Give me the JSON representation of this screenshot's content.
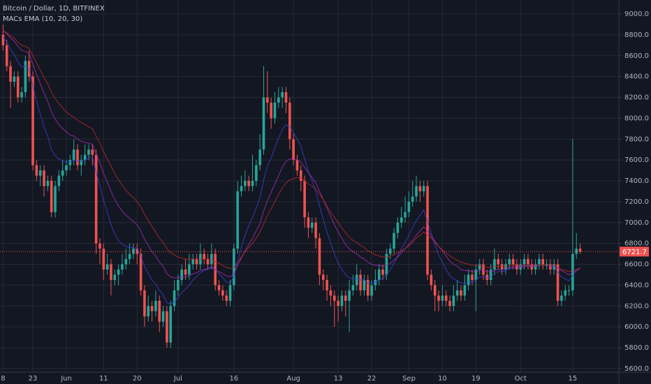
{
  "chart_data": {
    "type": "candlestick",
    "title": "Bitcoin / Dollar, 1D, BITFINEX",
    "indicator": {
      "title": "MACs EMA (10, 20, 30)",
      "lines": [
        {
          "color": "#3a3fd1",
          "values": [
            8780,
            8730,
            8660,
            8610,
            8540,
            8490,
            8500,
            8480,
            8310,
            8160,
            8040,
            7920,
            7830,
            7700,
            7640,
            7610,
            7590,
            7580,
            7580,
            7600,
            7590,
            7590,
            7600,
            7620,
            7630,
            7480,
            7350,
            7210,
            7100,
            6980,
            6890,
            6830,
            6790,
            6770,
            6760,
            6760,
            6750,
            6680,
            6580,
            6510,
            6450,
            6410,
            6350,
            6310,
            6230,
            6220,
            6240,
            6280,
            6330,
            6360,
            6400,
            6450,
            6480,
            6520,
            6540,
            6550,
            6580,
            6550,
            6510,
            6470,
            6430,
            6420,
            6480,
            6630,
            6760,
            6880,
            6970,
            7050,
            7140,
            7240,
            7410,
            7540,
            7620,
            7720,
            7810,
            7890,
            7940,
            7920,
            7860,
            7800,
            7730,
            7610,
            7490,
            7400,
            7300,
            7160,
            7030,
            6910,
            6800,
            6700,
            6610,
            6550,
            6500,
            6470,
            6460,
            6470,
            6450,
            6450,
            6420,
            6420,
            6430,
            6450,
            6460,
            6500,
            6550,
            6610,
            6680,
            6750,
            6810,
            6880,
            6950,
            7020,
            7070,
            7120,
            7010,
            6900,
            6790,
            6690,
            6620,
            6550,
            6490,
            6460,
            6440,
            6420,
            6420,
            6430,
            6430,
            6450,
            6480,
            6480,
            6470,
            6480,
            6510,
            6530,
            6530,
            6540,
            6560,
            6570,
            6570,
            6580,
            6590,
            6590,
            6580,
            6580,
            6590,
            6590,
            6590,
            6580,
            6580,
            6520,
            6480,
            6460,
            6440,
            6490,
            6540,
            6570
          ]
        },
        {
          "color": "#a02db5",
          "values": [
            8840,
            8810,
            8770,
            8740,
            8690,
            8650,
            8640,
            8620,
            8520,
            8420,
            8330,
            8240,
            8160,
            8060,
            7990,
            7940,
            7900,
            7870,
            7840,
            7830,
            7800,
            7780,
            7770,
            7760,
            7750,
            7660,
            7570,
            7470,
            7390,
            7300,
            7220,
            7160,
            7110,
            7070,
            7040,
            7010,
            6980,
            6920,
            6840,
            6780,
            6720,
            6680,
            6620,
            6580,
            6510,
            6480,
            6470,
            6470,
            6480,
            6480,
            6490,
            6510,
            6520,
            6540,
            6550,
            6560,
            6570,
            6550,
            6530,
            6510,
            6490,
            6480,
            6510,
            6590,
            6660,
            6730,
            6790,
            6850,
            6920,
            6990,
            7110,
            7210,
            7290,
            7370,
            7450,
            7530,
            7590,
            7610,
            7610,
            7600,
            7580,
            7530,
            7480,
            7430,
            7380,
            7300,
            7220,
            7140,
            7060,
            6980,
            6910,
            6850,
            6790,
            6750,
            6720,
            6700,
            6670,
            6650,
            6620,
            6600,
            6590,
            6590,
            6580,
            6590,
            6610,
            6640,
            6670,
            6710,
            6750,
            6790,
            6830,
            6880,
            6920,
            6960,
            6920,
            6870,
            6820,
            6770,
            6730,
            6680,
            6630,
            6600,
            6580,
            6550,
            6540,
            6540,
            6530,
            6530,
            6540,
            6540,
            6530,
            6530,
            6540,
            6550,
            6550,
            6560,
            6570,
            6570,
            6570,
            6570,
            6580,
            6580,
            6580,
            6580,
            6590,
            6590,
            6590,
            6590,
            6590,
            6560,
            6540,
            6520,
            6500,
            6520,
            6540,
            6560
          ]
        },
        {
          "color": "#b8282c",
          "values": [
            8840,
            8820,
            8790,
            8770,
            8730,
            8700,
            8690,
            8670,
            8600,
            8530,
            8460,
            8390,
            8330,
            8250,
            8190,
            8140,
            8100,
            8060,
            8030,
            8010,
            7980,
            7960,
            7940,
            7920,
            7900,
            7830,
            7760,
            7680,
            7610,
            7540,
            7470,
            7410,
            7360,
            7310,
            7270,
            7240,
            7200,
            7150,
            7080,
            7020,
            6960,
            6910,
            6850,
            6810,
            6750,
            6710,
            6690,
            6670,
            6660,
            6650,
            6650,
            6650,
            6650,
            6650,
            6650,
            6650,
            6650,
            6630,
            6610,
            6590,
            6570,
            6560,
            6570,
            6620,
            6670,
            6720,
            6760,
            6800,
            6850,
            6910,
            6990,
            7070,
            7130,
            7200,
            7270,
            7330,
            7380,
            7410,
            7420,
            7430,
            7430,
            7400,
            7370,
            7350,
            7320,
            7270,
            7220,
            7160,
            7100,
            7050,
            7000,
            6950,
            6900,
            6860,
            6830,
            6810,
            6780,
            6760,
            6730,
            6710,
            6690,
            6680,
            6670,
            6670,
            6680,
            6690,
            6710,
            6730,
            6750,
            6780,
            6810,
            6850,
            6880,
            6910,
            6880,
            6850,
            6810,
            6770,
            6740,
            6710,
            6680,
            6660,
            6640,
            6620,
            6610,
            6600,
            6590,
            6590,
            6590,
            6580,
            6570,
            6570,
            6580,
            6580,
            6580,
            6580,
            6590,
            6590,
            6590,
            6590,
            6590,
            6590,
            6590,
            6590,
            6590,
            6590,
            6590,
            6590,
            6590,
            6570,
            6550,
            6540,
            6530,
            6540,
            6550,
            6560
          ]
        }
      ]
    },
    "categories": [
      "8",
      null,
      null,
      null,
      null,
      null,
      null,
      null,
      "23",
      null,
      null,
      null,
      null,
      null,
      null,
      null,
      null,
      "Jun",
      null,
      null,
      null,
      null,
      null,
      null,
      null,
      null,
      null,
      "11",
      null,
      null,
      null,
      null,
      null,
      null,
      null,
      null,
      "20",
      null,
      null,
      null,
      null,
      null,
      null,
      null,
      null,
      null,
      null,
      "Jul",
      null,
      null,
      null,
      null,
      null,
      null,
      null,
      null,
      null,
      null,
      null,
      null,
      null,
      null,
      "16",
      null,
      null,
      null,
      null,
      null,
      null,
      null,
      null,
      null,
      null,
      null,
      null,
      null,
      null,
      null,
      "Aug",
      null,
      null,
      null,
      null,
      null,
      null,
      null,
      null,
      null,
      null,
      null,
      "13",
      null,
      null,
      null,
      null,
      null,
      null,
      null,
      null,
      "22",
      null,
      null,
      null,
      null,
      null,
      null,
      null,
      null,
      null,
      "Sep",
      null,
      null,
      null,
      null,
      null,
      null,
      null,
      null,
      "10",
      null,
      null,
      null,
      null,
      null,
      null,
      null,
      null,
      "19",
      null,
      null,
      null,
      null,
      null,
      null,
      null,
      null,
      null,
      null,
      null,
      "Oct",
      null,
      null,
      null,
      null,
      null,
      null,
      null,
      null,
      null,
      null,
      null,
      null,
      null,
      "15",
      null,
      null
    ],
    "open": [
      8800,
      8700,
      8500,
      8350,
      8400,
      8200,
      8250,
      8550,
      8400,
      7550,
      7450,
      7500,
      7350,
      7400,
      7100,
      7350,
      7450,
      7500,
      7550,
      7600,
      7700,
      7550,
      7600,
      7650,
      7700,
      7650,
      6800,
      6750,
      6550,
      6600,
      6450,
      6500,
      6550,
      6600,
      6650,
      6700,
      6750,
      6700,
      6350,
      6100,
      6200,
      6150,
      6250,
      6050,
      6150,
      5850,
      6200,
      6350,
      6450,
      6550,
      6500,
      6600,
      6650,
      6600,
      6700,
      6650,
      6600,
      6700,
      6400,
      6350,
      6300,
      6250,
      6400,
      6750,
      7300,
      7350,
      7400,
      7350,
      7400,
      7550,
      7700,
      8200,
      8150,
      8000,
      8150,
      8200,
      8250,
      8150,
      7800,
      7600,
      7500,
      7400,
      7050,
      6950,
      7000,
      6850,
      6500,
      6450,
      6350,
      6300,
      6250,
      6200,
      6300,
      6250,
      6350,
      6400,
      6500,
      6350,
      6450,
      6300,
      6400,
      6450,
      6550,
      6500,
      6700,
      6750,
      6900,
      7000,
      7050,
      7100,
      7200,
      7250,
      7350,
      7300,
      7350,
      6500,
      6400,
      6300,
      6250,
      6300,
      6250,
      6200,
      6300,
      6350,
      6300,
      6400,
      6500,
      6450,
      6550,
      6600,
      6500,
      6450,
      6550,
      6650,
      6600,
      6550,
      6600,
      6650,
      6600,
      6550,
      6600,
      6650,
      6600,
      6550,
      6600,
      6650,
      6600,
      6600,
      6550,
      6600,
      6250,
      6300,
      6350,
      6350,
      6700,
      6750
    ],
    "high": [
      8900,
      8750,
      8550,
      8450,
      8450,
      8300,
      8600,
      8650,
      8450,
      7600,
      7550,
      7550,
      7450,
      7450,
      7400,
      7500,
      7600,
      7600,
      7650,
      7800,
      7750,
      7650,
      7750,
      7750,
      7750,
      7700,
      6850,
      6800,
      6700,
      6650,
      6550,
      6600,
      6700,
      6750,
      6800,
      6800,
      6800,
      6750,
      6400,
      6300,
      6250,
      6350,
      6300,
      6200,
      6200,
      6250,
      6450,
      6500,
      6600,
      6650,
      6700,
      6700,
      6700,
      6800,
      6750,
      6700,
      6800,
      6750,
      6450,
      6400,
      6350,
      6450,
      6800,
      7400,
      7450,
      7500,
      7450,
      7650,
      7600,
      7850,
      8500,
      8450,
      8200,
      8250,
      8300,
      8300,
      8300,
      8200,
      7850,
      7650,
      7550,
      7450,
      7100,
      7050,
      7050,
      6900,
      6550,
      6500,
      6400,
      6350,
      6300,
      6350,
      6350,
      6450,
      6500,
      6600,
      6550,
      6500,
      6500,
      6450,
      6550,
      6600,
      6600,
      6750,
      6800,
      6950,
      7050,
      7150,
      7250,
      7300,
      7400,
      7450,
      7400,
      7400,
      7400,
      6550,
      6450,
      6350,
      6400,
      6350,
      6300,
      6400,
      6450,
      6400,
      6500,
      6550,
      6550,
      6600,
      6650,
      6650,
      6550,
      6600,
      6750,
      6700,
      6650,
      6650,
      6700,
      6700,
      6650,
      6650,
      6700,
      6700,
      6650,
      6650,
      6700,
      6700,
      6650,
      6650,
      6650,
      6650,
      6350,
      6400,
      6400,
      7800,
      6900,
      6800
    ],
    "low": [
      8650,
      8450,
      8100,
      8300,
      8150,
      8150,
      8200,
      8350,
      7500,
      7400,
      7350,
      7250,
      7300,
      7050,
      7050,
      7300,
      7400,
      7450,
      7500,
      7550,
      7500,
      7450,
      7550,
      7600,
      7550,
      6700,
      6600,
      6450,
      6500,
      6300,
      6400,
      6400,
      6500,
      6550,
      6600,
      6650,
      6600,
      6300,
      6000,
      6050,
      6050,
      6100,
      5950,
      6000,
      5800,
      5800,
      6150,
      6300,
      6400,
      6450,
      6450,
      6550,
      6550,
      6550,
      6600,
      6550,
      6550,
      6350,
      6300,
      6250,
      6200,
      6200,
      6350,
      6700,
      7250,
      7300,
      7300,
      7300,
      7350,
      7500,
      7650,
      8050,
      7900,
      7950,
      8100,
      8100,
      8050,
      7700,
      7550,
      7450,
      7300,
      6950,
      6850,
      6900,
      6750,
      6400,
      6350,
      6250,
      6200,
      6000,
      6050,
      6150,
      6100,
      5950,
      6300,
      6350,
      6300,
      6300,
      6250,
      6250,
      6350,
      6400,
      6450,
      6450,
      6650,
      6700,
      6850,
      6950,
      7000,
      7050,
      7150,
      7200,
      7200,
      7250,
      6450,
      6350,
      6150,
      6150,
      6200,
      6200,
      6150,
      6150,
      6250,
      6250,
      6250,
      6350,
      6400,
      6150,
      6500,
      6450,
      6400,
      6400,
      6500,
      6550,
      6500,
      6500,
      6550,
      6550,
      6500,
      6500,
      6550,
      6550,
      6500,
      6500,
      6550,
      6550,
      6550,
      6500,
      6500,
      6200,
      6200,
      6250,
      6300,
      6300,
      6650,
      6700
    ],
    "close": [
      8700,
      8500,
      8350,
      8400,
      8200,
      8250,
      8550,
      8400,
      7550,
      7450,
      7500,
      7350,
      7400,
      7100,
      7350,
      7450,
      7500,
      7550,
      7600,
      7700,
      7550,
      7600,
      7650,
      7700,
      7650,
      6800,
      6750,
      6550,
      6600,
      6450,
      6500,
      6550,
      6600,
      6650,
      6700,
      6750,
      6700,
      6350,
      6100,
      6200,
      6150,
      6250,
      6050,
      6150,
      5850,
      6200,
      6350,
      6450,
      6550,
      6500,
      6600,
      6650,
      6600,
      6700,
      6650,
      6600,
      6700,
      6400,
      6350,
      6300,
      6250,
      6400,
      6750,
      7300,
      7350,
      7400,
      7350,
      7400,
      7550,
      7700,
      8200,
      8150,
      8000,
      8150,
      8200,
      8250,
      8150,
      7800,
      7600,
      7500,
      7400,
      7050,
      6950,
      7000,
      6850,
      6500,
      6450,
      6350,
      6300,
      6250,
      6200,
      6300,
      6250,
      6350,
      6400,
      6500,
      6350,
      6450,
      6300,
      6400,
      6450,
      6550,
      6500,
      6700,
      6750,
      6900,
      7000,
      7050,
      7100,
      7200,
      7250,
      7350,
      7300,
      7350,
      6500,
      6400,
      6300,
      6250,
      6300,
      6250,
      6200,
      6300,
      6350,
      6300,
      6400,
      6500,
      6450,
      6550,
      6600,
      6500,
      6450,
      6550,
      6650,
      6600,
      6550,
      6600,
      6650,
      6600,
      6550,
      6600,
      6650,
      6600,
      6550,
      6600,
      6650,
      6600,
      6600,
      6550,
      6600,
      6250,
      6300,
      6350,
      6350,
      6700,
      6750,
      6721.7
    ],
    "up_color": "#26a69a",
    "down_color": "#ef5350",
    "ylim": [
      5566,
      9134
    ],
    "yticks": [
      {
        "value": 5600,
        "label": "5600.0"
      },
      {
        "value": 5800,
        "label": "5800.0"
      },
      {
        "value": 6000,
        "label": "6000.0"
      },
      {
        "value": 6200,
        "label": "6200.0"
      },
      {
        "value": 6400,
        "label": "6400.0"
      },
      {
        "value": 6600,
        "label": "6600.0"
      },
      {
        "value": 6800,
        "label": "6800.0"
      },
      {
        "value": 7000,
        "label": "7000.0"
      },
      {
        "value": 7200,
        "label": "7200.0"
      },
      {
        "value": 7400,
        "label": "7400.0"
      },
      {
        "value": 7600,
        "label": "7600.0"
      },
      {
        "value": 7800,
        "label": "7800.0"
      },
      {
        "value": 8000,
        "label": "8000.0"
      },
      {
        "value": 8200,
        "label": "8200.0"
      },
      {
        "value": 8400,
        "label": "8400.0"
      },
      {
        "value": 8600,
        "label": "8600.0"
      },
      {
        "value": 8800,
        "label": "8800.0"
      },
      {
        "value": 9000,
        "label": "9000.0"
      }
    ],
    "grid": true
  }
}
